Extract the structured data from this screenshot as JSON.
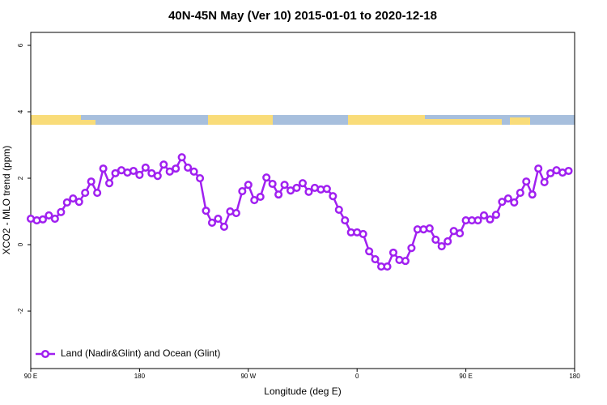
{
  "chart_data": {
    "type": "line",
    "title": "40N-45N May (Ver 10)   2015-01-01 to 2020-12-18",
    "x_label": "Longitude (deg E)",
    "y_label": "XCO2 - MLO trend (ppm)",
    "x": [
      90,
      95,
      100,
      105,
      110,
      115,
      120,
      125,
      130,
      135,
      140,
      145,
      150,
      155,
      160,
      165,
      170,
      175,
      180,
      185,
      190,
      195,
      200,
      205,
      210,
      215,
      220,
      225,
      230,
      235,
      240,
      245,
      250,
      255,
      260,
      265,
      270,
      275,
      280,
      285,
      290,
      295,
      300,
      305,
      310,
      315,
      320,
      325,
      330,
      335,
      340,
      345,
      350,
      355,
      360,
      365,
      370,
      375,
      380,
      385,
      390,
      395,
      400,
      405,
      410,
      415,
      420,
      425,
      430,
      435,
      440,
      445,
      450,
      455,
      460,
      465,
      470,
      475,
      480,
      485,
      490,
      495,
      500,
      505,
      510,
      515,
      520,
      525,
      530,
      535
    ],
    "series": [
      {
        "name": "Land (Nadir&Glint) and Ocean (Glint)",
        "color": "#a020f0",
        "values": [
          0.78,
          0.73,
          0.76,
          0.88,
          0.78,
          0.98,
          1.27,
          1.39,
          1.29,
          1.56,
          1.9,
          1.56,
          2.29,
          1.85,
          2.15,
          2.24,
          2.17,
          2.22,
          2.1,
          2.32,
          2.15,
          2.07,
          2.41,
          2.2,
          2.29,
          2.63,
          2.32,
          2.2,
          2.0,
          1.02,
          0.66,
          0.78,
          0.54,
          1.0,
          0.95,
          1.61,
          1.8,
          1.34,
          1.44,
          2.02,
          1.83,
          1.51,
          1.8,
          1.63,
          1.71,
          1.85,
          1.59,
          1.71,
          1.66,
          1.68,
          1.46,
          1.05,
          0.73,
          0.37,
          0.37,
          0.32,
          -0.2,
          -0.44,
          -0.66,
          -0.66,
          -0.24,
          -0.46,
          -0.49,
          -0.1,
          0.46,
          0.46,
          0.49,
          0.15,
          -0.05,
          0.1,
          0.41,
          0.34,
          0.73,
          0.73,
          0.73,
          0.88,
          0.76,
          0.9,
          1.29,
          1.39,
          1.27,
          1.56,
          1.9,
          1.51,
          2.29,
          1.88,
          2.15,
          2.24,
          2.17,
          2.22
        ]
      }
    ],
    "xlim": [
      90,
      540
    ],
    "xticks": [
      {
        "value": 90,
        "label": "90 E"
      },
      180,
      {
        "value": 270,
        "label": "90 W"
      },
      {
        "value": 360,
        "label": "0"
      },
      {
        "value": 450,
        "label": "90 E"
      },
      {
        "value": 540,
        "label": "180"
      }
    ],
    "ylim": [
      -3.73,
      6.39
    ],
    "yticks": [
      -2,
      0,
      2,
      4,
      6
    ],
    "legend": "bottom-left"
  }
}
